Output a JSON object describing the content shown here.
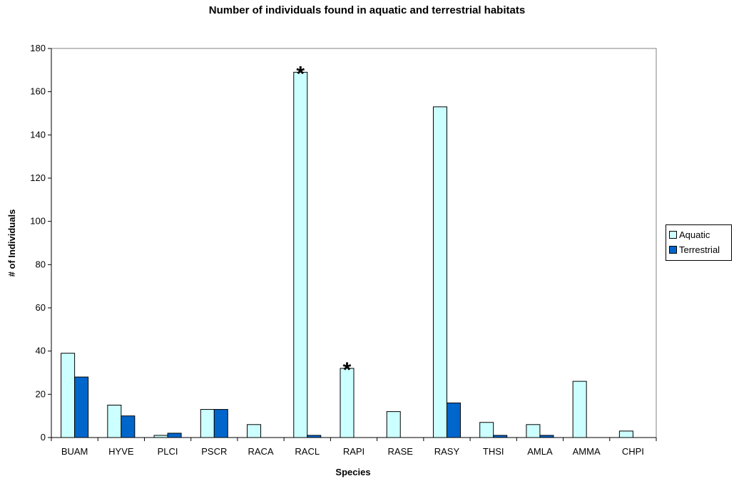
{
  "chart_data": {
    "type": "bar",
    "title": "Number of individuals found in aquatic and terrestrial habitats",
    "xlabel": "Species",
    "ylabel": "# of Individuals",
    "categories": [
      "BUAM",
      "HYVE",
      "PLCI",
      "PSCR",
      "RACA",
      "RACL",
      "RAPI",
      "RASE",
      "RASY",
      "THSI",
      "AMLA",
      "AMMA",
      "CHPI"
    ],
    "series": [
      {
        "name": "Aquatic",
        "color": "#ccffff",
        "values": [
          39,
          15,
          1,
          13,
          6,
          169,
          32,
          12,
          153,
          7,
          6,
          26,
          3
        ]
      },
      {
        "name": "Terrestrial",
        "color": "#0066cc",
        "values": [
          28,
          10,
          2,
          13,
          0,
          1,
          0,
          0,
          16,
          1,
          1,
          0,
          0
        ]
      }
    ],
    "ylim": [
      0,
      180
    ],
    "yticks": [
      0,
      20,
      40,
      60,
      80,
      100,
      120,
      140,
      160,
      180
    ],
    "grid": false,
    "legend_position": "right",
    "annotations": [
      {
        "text": "*",
        "category": "RACL",
        "series": "Aquatic"
      },
      {
        "text": "*",
        "category": "RAPI",
        "series": "Aquatic"
      }
    ]
  }
}
